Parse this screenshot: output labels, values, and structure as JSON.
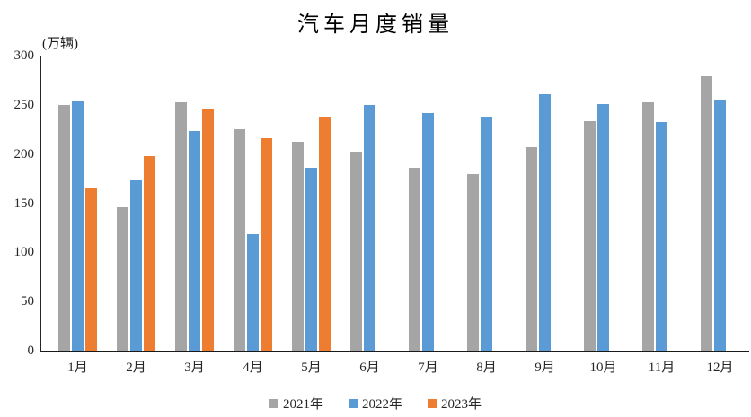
{
  "page": {
    "background": "#ffffff",
    "axis_color": "#262626",
    "text_color": "#262626"
  },
  "chart_data": {
    "type": "bar",
    "title": "汽车月度销量",
    "ylabel": "(万辆)",
    "xlabel": "",
    "categories": [
      "1月",
      "2月",
      "3月",
      "4月",
      "5月",
      "6月",
      "7月",
      "8月",
      "9月",
      "10月",
      "11月",
      "12月"
    ],
    "series": [
      {
        "name": "2021年",
        "color": "#A5A5A5",
        "values": [
          250.3,
          145.5,
          252.6,
          225.2,
          212.8,
          201.5,
          186.4,
          179.9,
          206.7,
          233.3,
          252.2,
          278.6
        ]
      },
      {
        "name": "2022年",
        "color": "#5B9BD5",
        "values": [
          253.1,
          173.7,
          223.4,
          118.1,
          186.2,
          250.2,
          242.0,
          238.3,
          261.0,
          250.5,
          232.8,
          255.6
        ]
      },
      {
        "name": "2023年",
        "color": "#ED7D31",
        "values": [
          164.9,
          197.6,
          245.1,
          215.9,
          238.2,
          null,
          null,
          null,
          null,
          null,
          null,
          null
        ]
      }
    ],
    "ylim": [
      0,
      300
    ],
    "yticks": [
      0,
      50,
      100,
      150,
      200,
      250,
      300
    ],
    "grid": false,
    "legend_position": "bottom"
  }
}
